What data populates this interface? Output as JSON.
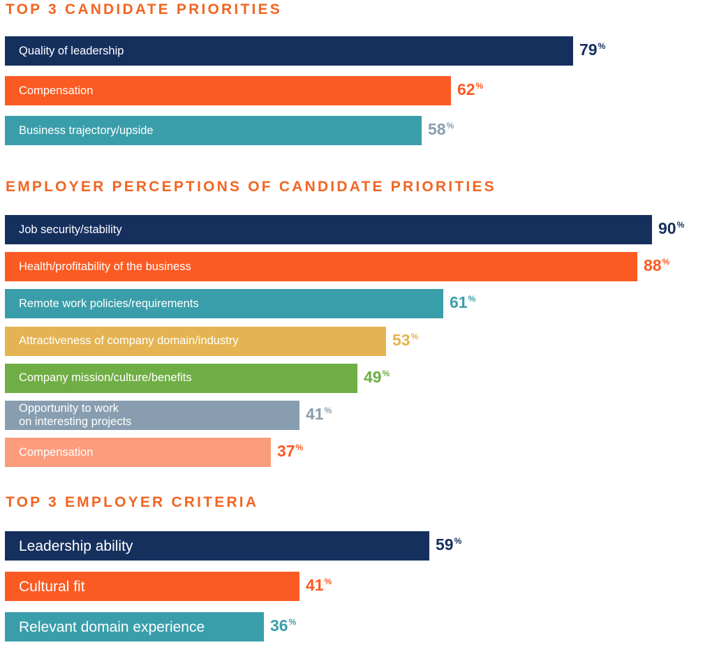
{
  "colors": {
    "navy": "#16305e",
    "orange": "#fb5a22",
    "teal": "#3a9eaa",
    "gold": "#e4b452",
    "green": "#6fae44",
    "slate": "#889eb0",
    "peach": "#fb9c7c",
    "title": "#f26522"
  },
  "chart_data": [
    {
      "type": "bar",
      "title": "TOP 3 CANDIDATE PRIORITIES",
      "unit": "%",
      "categories": [
        "Quality of leadership",
        "Compensation",
        "Business trajectory/upside"
      ],
      "values": [
        79,
        62,
        58
      ],
      "bar_colors": [
        "navy",
        "orange",
        "teal"
      ],
      "value_colors": [
        "navy",
        "orange",
        "slate"
      ]
    },
    {
      "type": "bar",
      "title": "EMPLOYER PERCEPTIONS OF CANDIDATE PRIORITIES",
      "unit": "%",
      "categories": [
        "Job security/stability",
        "Health/profitability of the business",
        "Remote work policies/requirements",
        "Attractiveness of company domain/industry",
        "Company mission/culture/benefits",
        "Opportunity to work\non interesting projects",
        "Compensation"
      ],
      "values": [
        90,
        88,
        61,
        53,
        49,
        41,
        37
      ],
      "bar_colors": [
        "navy",
        "orange",
        "teal",
        "gold",
        "green",
        "slate",
        "peach"
      ],
      "value_colors": [
        "navy",
        "orange",
        "teal",
        "gold",
        "green",
        "slate",
        "orange"
      ]
    },
    {
      "type": "bar",
      "title": "TOP 3 EMPLOYER CRITERIA",
      "unit": "%",
      "categories": [
        "Leadership ability",
        "Cultural fit",
        "Relevant domain experience"
      ],
      "values": [
        59,
        41,
        36
      ],
      "bar_colors": [
        "navy",
        "orange",
        "teal"
      ],
      "value_colors": [
        "navy",
        "orange",
        "teal"
      ]
    }
  ]
}
